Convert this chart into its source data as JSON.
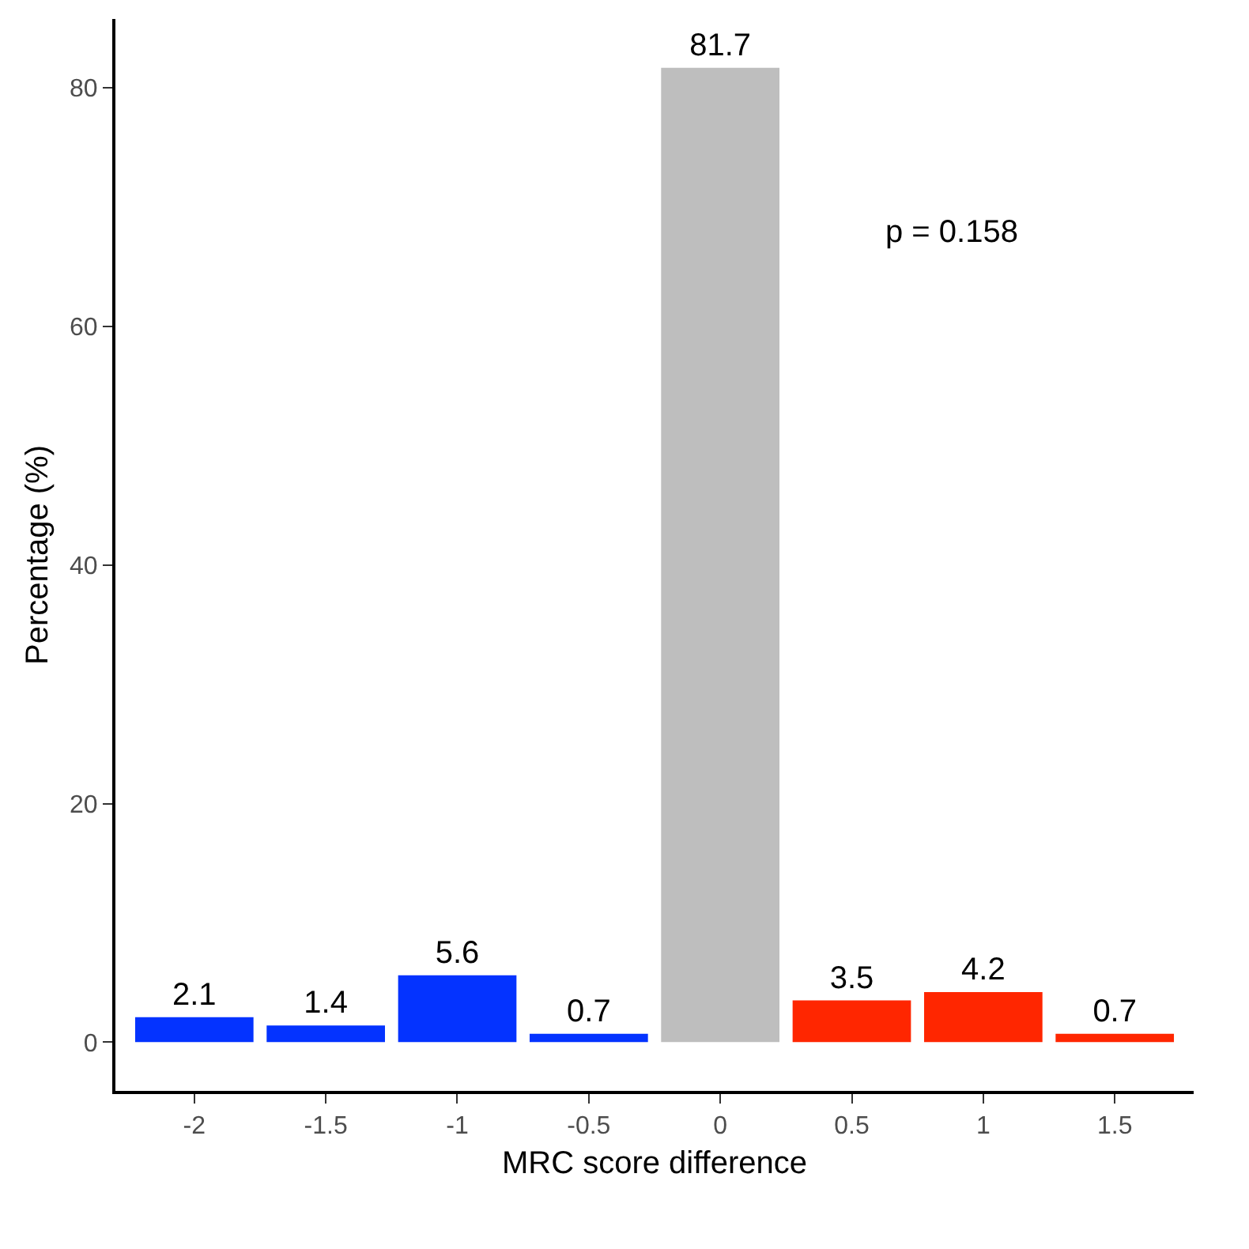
{
  "chart_data": {
    "type": "bar",
    "xlabel": "MRC score difference",
    "ylabel": "Percentage (%)",
    "categories": [
      "-2",
      "-1.5",
      "-1",
      "-0.5",
      "0",
      "0.5",
      "1",
      "1.5"
    ],
    "values": [
      2.1,
      1.4,
      5.6,
      0.7,
      81.7,
      3.5,
      4.2,
      0.7
    ],
    "colors": [
      "#0433ff",
      "#0433ff",
      "#0433ff",
      "#0433ff",
      "#bebebe",
      "#ff2600",
      "#ff2600",
      "#ff2600"
    ],
    "ylim": [
      -4.085,
      85.785
    ],
    "yticks": [
      0,
      20,
      40,
      60,
      80
    ],
    "data_labels": true,
    "grid": false,
    "legend": false,
    "annotations": [
      "p = 0.158"
    ]
  }
}
